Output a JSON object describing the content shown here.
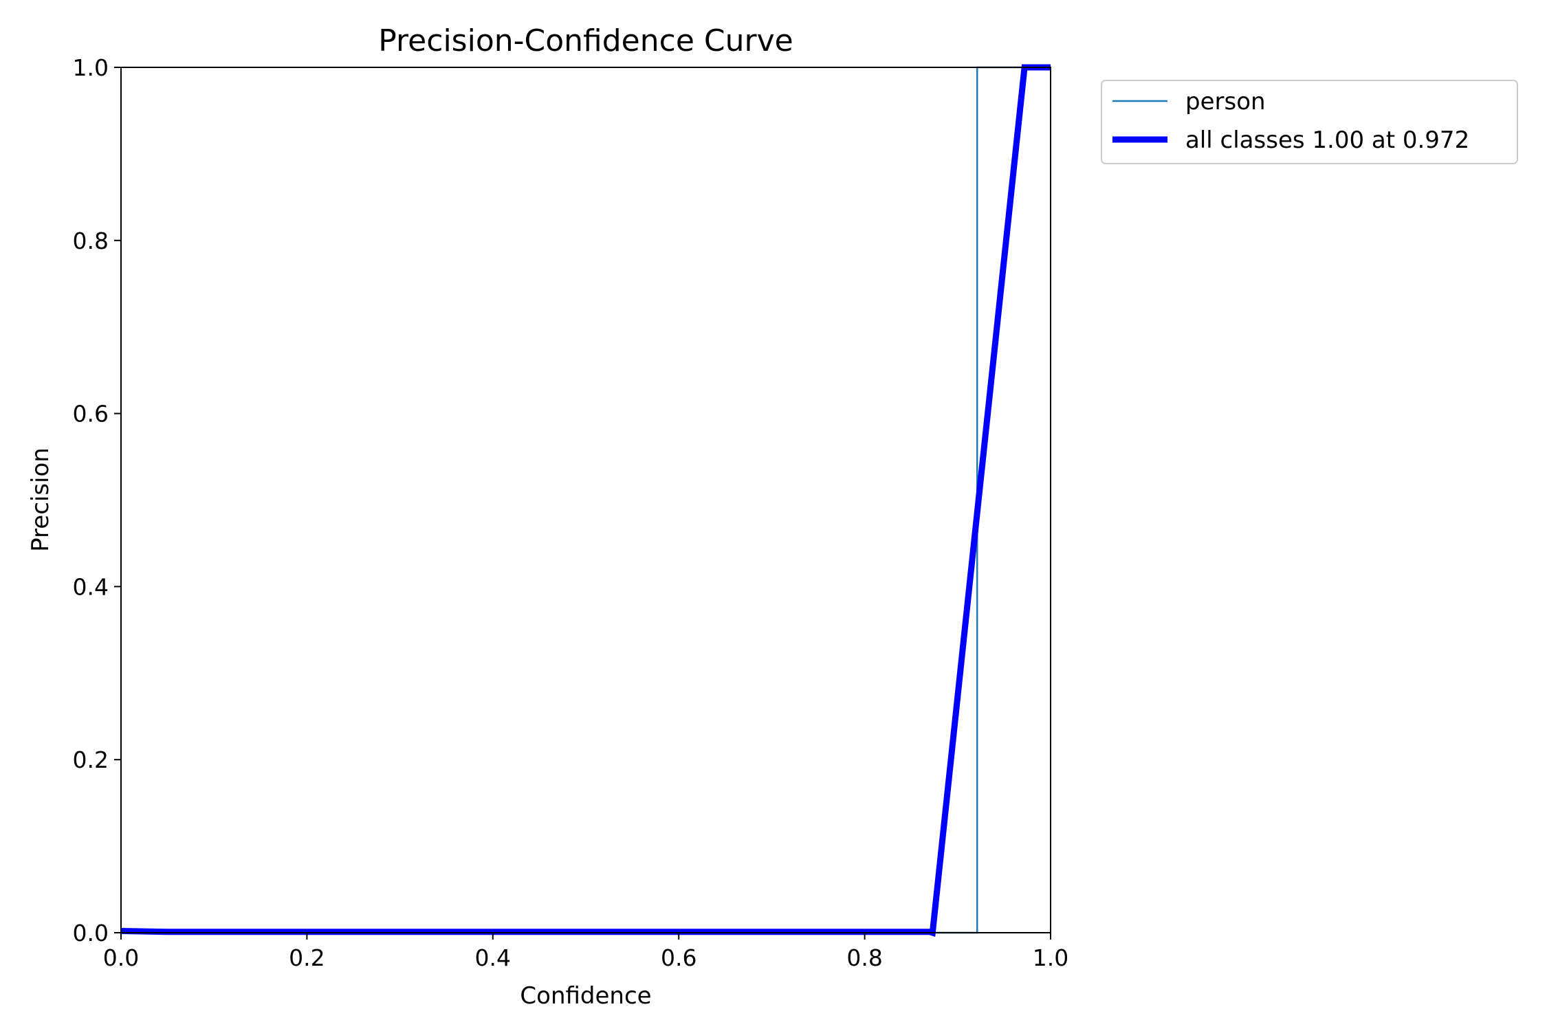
{
  "chart_data": {
    "type": "line",
    "title": "Precision-Confidence Curve",
    "xlabel": "Confidence",
    "ylabel": "Precision",
    "xlim": [
      0.0,
      1.0
    ],
    "ylim": [
      0.0,
      1.0
    ],
    "xticks": [
      "0.0",
      "0.2",
      "0.4",
      "0.6",
      "0.8",
      "1.0"
    ],
    "yticks": [
      "0.0",
      "0.2",
      "0.4",
      "0.6",
      "0.8",
      "1.0"
    ],
    "grid": false,
    "legend_position": "outside-top-right",
    "series": [
      {
        "name": "person",
        "color": "#1f77b4",
        "style": "thin",
        "x": [
          0.0,
          0.921,
          0.921,
          1.0
        ],
        "y": [
          0.0,
          0.0,
          1.0,
          1.0
        ]
      },
      {
        "name": "all classes 1.00 at 0.972",
        "color": "#0000ff",
        "style": "thick",
        "x": [
          0.0,
          0.05,
          0.1,
          0.87,
          0.873,
          0.972,
          1.0
        ],
        "y": [
          0.002,
          0.001,
          0.001,
          0.001,
          0.0,
          1.0,
          1.0
        ]
      }
    ]
  }
}
